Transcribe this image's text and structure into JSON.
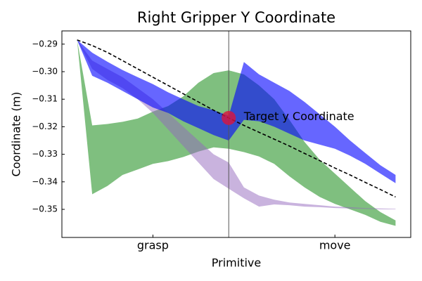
{
  "chart_data": {
    "type": "band",
    "title": "Right Gripper Y Coordinate",
    "xlabel": "Primitive",
    "ylabel": "Coordinate (m)",
    "x": [
      0,
      1,
      2,
      3,
      4,
      5,
      6,
      7,
      8,
      9,
      10,
      11,
      12,
      13,
      14,
      15,
      16,
      17,
      18,
      19,
      20,
      21
    ],
    "xlim": [
      -1,
      22
    ],
    "xticks": [
      {
        "value": 5,
        "label": "grasp"
      },
      {
        "value": 17,
        "label": "move"
      }
    ],
    "ylim": [
      -0.3602,
      -0.2852
    ],
    "yticks": [
      {
        "value": -0.29,
        "label": "−0.29"
      },
      {
        "value": -0.3,
        "label": "−0.30"
      },
      {
        "value": -0.31,
        "label": "−0.31"
      },
      {
        "value": -0.32,
        "label": "−0.32"
      },
      {
        "value": -0.33,
        "label": "−0.33"
      },
      {
        "value": -0.34,
        "label": "−0.34"
      },
      {
        "value": -0.35,
        "label": "−0.35"
      }
    ],
    "series": [
      {
        "color": "#008000",
        "opacity": 0.5,
        "upper": [
          -0.2885,
          -0.3195,
          -0.319,
          -0.3182,
          -0.317,
          -0.3145,
          -0.3125,
          -0.309,
          -0.304,
          -0.3005,
          -0.2995,
          -0.301,
          -0.305,
          -0.31,
          -0.3175,
          -0.3255,
          -0.332,
          -0.337,
          -0.342,
          -0.347,
          -0.351,
          -0.354
        ],
        "lower": [
          -0.2885,
          -0.3445,
          -0.3415,
          -0.3375,
          -0.3355,
          -0.3335,
          -0.3325,
          -0.331,
          -0.329,
          -0.3275,
          -0.328,
          -0.3292,
          -0.3308,
          -0.3335,
          -0.338,
          -0.342,
          -0.3455,
          -0.348,
          -0.35,
          -0.352,
          -0.3545,
          -0.356
        ]
      },
      {
        "color": "#9467bd",
        "opacity": 0.5,
        "upper": [
          -0.2885,
          -0.296,
          -0.299,
          -0.302,
          -0.306,
          -0.31,
          -0.315,
          -0.32,
          -0.325,
          -0.33,
          -0.333,
          -0.342,
          -0.345,
          -0.3465,
          -0.3475,
          -0.348,
          -0.3485,
          -0.349,
          -0.3492,
          -0.3495,
          -0.3497,
          -0.3498
        ],
        "lower": [
          -0.2885,
          -0.299,
          -0.303,
          -0.306,
          -0.31,
          -0.315,
          -0.321,
          -0.327,
          -0.333,
          -0.339,
          -0.3425,
          -0.346,
          -0.349,
          -0.3482,
          -0.3485,
          -0.349,
          -0.3492,
          -0.3495,
          -0.3497,
          -0.3498,
          -0.35,
          -0.35
        ]
      },
      {
        "color": "#0000ff",
        "opacity": 0.6,
        "upper": [
          -0.2885,
          -0.2931,
          -0.2964,
          -0.2994,
          -0.302,
          -0.3045,
          -0.3075,
          -0.31,
          -0.3125,
          -0.314,
          -0.316,
          -0.2965,
          -0.301,
          -0.304,
          -0.307,
          -0.311,
          -0.3155,
          -0.32,
          -0.325,
          -0.3295,
          -0.334,
          -0.3375
        ],
        "lower": [
          -0.2885,
          -0.3015,
          -0.304,
          -0.307,
          -0.31,
          -0.313,
          -0.315,
          -0.318,
          -0.3205,
          -0.323,
          -0.325,
          -0.3175,
          -0.318,
          -0.32,
          -0.3225,
          -0.325,
          -0.3265,
          -0.328,
          -0.3305,
          -0.3335,
          -0.337,
          -0.3405
        ]
      }
    ],
    "line": {
      "color": "#000000",
      "dashed": true,
      "values": [
        -0.2885,
        -0.2905,
        -0.293,
        -0.296,
        -0.299,
        -0.302,
        -0.305,
        -0.308,
        -0.311,
        -0.314,
        -0.3168,
        -0.3195,
        -0.322,
        -0.3245,
        -0.327,
        -0.3297,
        -0.3323,
        -0.335,
        -0.3375,
        -0.3402,
        -0.3428,
        -0.3455
      ]
    },
    "vline": {
      "x": 10,
      "color": "#555555"
    },
    "marker": {
      "x": 10,
      "y": -0.3168,
      "color": "#dc143c"
    },
    "annotation": {
      "text": "Target y Coordinate",
      "x": 11,
      "y": -0.3165
    }
  }
}
